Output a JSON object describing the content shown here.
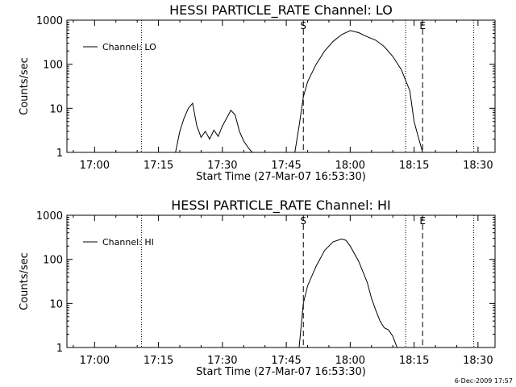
{
  "chart_data": [
    {
      "type": "line",
      "title": "HESSI PARTICLE_RATE Channel: LO",
      "xlabel": "Start Time (27-Mar-07 16:53:30)",
      "ylabel": "Counts/sec",
      "xlim": [
        "16:53:30",
        "18:34:00"
      ],
      "ylim": [
        1,
        1000
      ],
      "yscale": "log",
      "xticks": [
        "17:00",
        "17:15",
        "17:30",
        "17:45",
        "18:00",
        "18:15",
        "18:30"
      ],
      "yticks": [
        "1",
        "10",
        "100",
        "1000"
      ],
      "grid": false,
      "legend": {
        "placement": "top-left"
      },
      "dotted_lines": [
        "17:11",
        "18:13",
        "18:29"
      ],
      "dashed_lines": [
        {
          "time": "17:49",
          "label": "S"
        },
        {
          "time": "18:17",
          "label": "E"
        }
      ],
      "series": [
        {
          "name": "Channel: LO",
          "x": [
            "17:19",
            "17:20",
            "17:21",
            "17:22",
            "17:23",
            "17:24",
            "17:25",
            "17:26",
            "17:27",
            "17:28",
            "17:29",
            "17:30",
            "17:31",
            "17:32",
            "17:33",
            "17:34",
            "17:35",
            "17:36",
            "17:37",
            "17:47",
            "17:48",
            "17:49",
            "17:50",
            "17:52",
            "17:54",
            "17:56",
            "17:58",
            "18:00",
            "18:02",
            "18:04",
            "18:06",
            "18:08",
            "18:10",
            "18:12",
            "18:14",
            "18:15",
            "18:16",
            "18:17"
          ],
          "y": [
            1,
            3,
            6,
            10,
            13,
            4,
            2.2,
            3,
            2,
            3.2,
            2.3,
            4,
            6,
            9,
            7,
            3,
            1.8,
            1.3,
            1,
            1,
            4,
            18,
            40,
            100,
            200,
            330,
            470,
            580,
            520,
            420,
            350,
            250,
            150,
            75,
            25,
            5,
            2.2,
            1
          ]
        }
      ]
    },
    {
      "type": "line",
      "title": "HESSI PARTICLE_RATE Channel: HI",
      "xlabel": "Start Time (27-Mar-07 16:53:30)",
      "ylabel": "Counts/sec",
      "xlim": [
        "16:53:30",
        "18:34:00"
      ],
      "ylim": [
        1,
        1000
      ],
      "yscale": "log",
      "xticks": [
        "17:00",
        "17:15",
        "17:30",
        "17:45",
        "18:00",
        "18:15",
        "18:30"
      ],
      "yticks": [
        "1",
        "10",
        "100",
        "1000"
      ],
      "grid": false,
      "legend": {
        "placement": "top-left"
      },
      "dotted_lines": [
        "17:11",
        "18:13",
        "18:29"
      ],
      "dashed_lines": [
        {
          "time": "17:49",
          "label": "S"
        },
        {
          "time": "18:17",
          "label": "E"
        }
      ],
      "series": [
        {
          "name": "Channel: HI",
          "x": [
            "17:48",
            "17:49",
            "17:50",
            "17:52",
            "17:54",
            "17:56",
            "17:58",
            "17:59",
            "18:00",
            "18:02",
            "18:04",
            "18:05",
            "18:06",
            "18:07",
            "18:08",
            "18:09",
            "18:10",
            "18:11"
          ],
          "y": [
            1,
            10,
            25,
            70,
            160,
            250,
            290,
            270,
            200,
            90,
            30,
            13,
            7,
            4,
            2.8,
            2.5,
            1.8,
            1
          ]
        }
      ]
    }
  ],
  "footer": {
    "timestamp": "6-Dec-2009 17:57"
  }
}
